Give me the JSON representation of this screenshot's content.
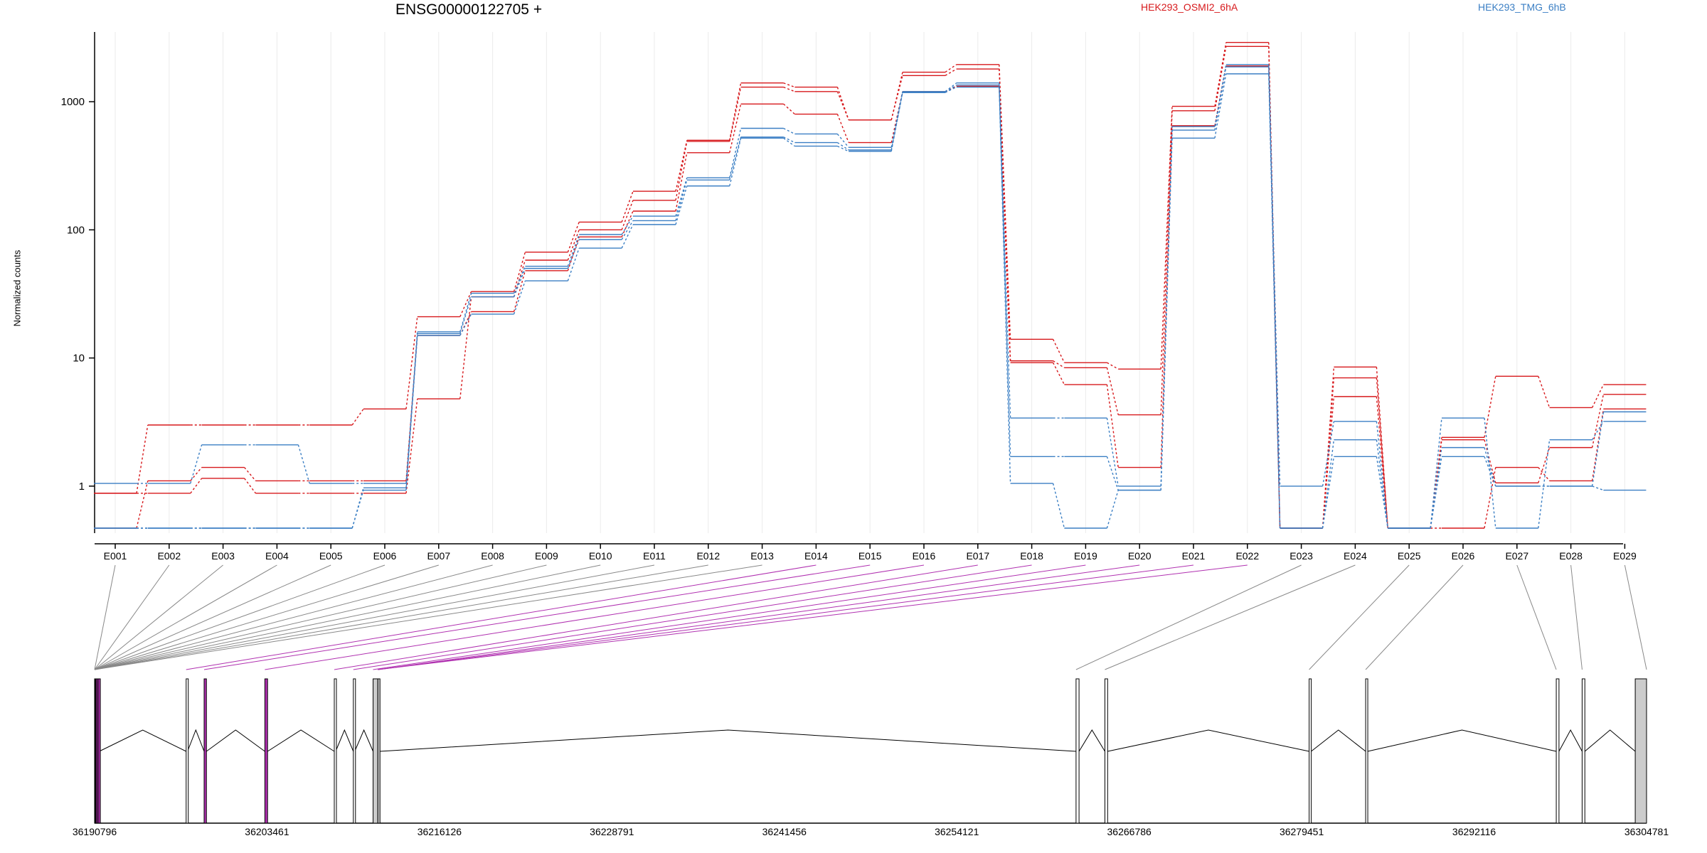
{
  "chart_data": {
    "type": "line",
    "title": "ENSG00000122705 +",
    "ylabel": "Normalized counts",
    "xlabel": "",
    "y_scale": "log",
    "ylim": [
      0.47,
      3500
    ],
    "y_ticks": [
      1,
      10,
      100,
      1000
    ],
    "y_tick_labels": [
      "1",
      "10",
      "100",
      "1000"
    ],
    "grid": "vertical",
    "legend": "top",
    "colors": {
      "HEK293_OSMI2_6hA": "#d7191c",
      "HEK293_TMG_6hB": "#3b7fc4",
      "highlight": "#b030b0"
    },
    "categories": [
      "E001",
      "E002",
      "E003",
      "E004",
      "E005",
      "E006",
      "E007",
      "E008",
      "E009",
      "E010",
      "E011",
      "E012",
      "E013",
      "E014",
      "E015",
      "E016",
      "E017",
      "E018",
      "E019",
      "E020",
      "E021",
      "E022",
      "E023",
      "E024",
      "E025",
      "E026",
      "E027",
      "E028",
      "E029"
    ],
    "series": [
      {
        "name": "HEK293_OSMI2_6hA",
        "color": "#d7191c",
        "values": [
          0.88,
          3.0,
          3.0,
          3.0,
          3.0,
          4.0,
          21,
          33,
          67,
          115,
          200,
          500,
          1400,
          1300,
          720,
          1700,
          1950,
          14,
          9.2,
          8.2,
          920,
          2900,
          0.47,
          8.5,
          0.47,
          2.4,
          7.2,
          4.1,
          6.2
        ]
      },
      {
        "name": "HEK293_OSMI2_6hA",
        "color": "#d7191c",
        "values": [
          0.88,
          0.88,
          1.15,
          0.88,
          0.88,
          0.88,
          4.8,
          30,
          58,
          100,
          170,
          490,
          1300,
          1200,
          720,
          1600,
          1800,
          9.5,
          8.4,
          3.6,
          850,
          2700,
          0.47,
          7.0,
          0.47,
          2.3,
          1.06,
          2.0,
          5.2
        ]
      },
      {
        "name": "HEK293_OSMI2_6hA",
        "color": "#d7191c",
        "values": [
          0.47,
          1.1,
          1.4,
          1.1,
          1.1,
          1.1,
          15,
          23,
          48,
          88,
          140,
          400,
          960,
          800,
          480,
          1200,
          1320,
          9.2,
          6.2,
          1.4,
          650,
          1900,
          0.47,
          5.0,
          0.47,
          0.47,
          1.4,
          1.1,
          4.0
        ]
      },
      {
        "name": "HEK293_TMG_6hB",
        "color": "#3b7fc4",
        "values": [
          1.05,
          1.05,
          2.1,
          2.1,
          1.05,
          1.05,
          16,
          32,
          52,
          92,
          128,
          255,
          620,
          560,
          440,
          1200,
          1400,
          3.4,
          3.4,
          1.0,
          640,
          1950,
          1.0,
          3.2,
          0.47,
          3.4,
          0.47,
          2.3,
          3.2
        ]
      },
      {
        "name": "HEK293_TMG_6hB",
        "color": "#3b7fc4",
        "values": [
          0.47,
          0.47,
          0.47,
          0.47,
          0.47,
          0.97,
          15.5,
          30,
          50,
          84,
          118,
          245,
          530,
          480,
          420,
          1180,
          1350,
          1.7,
          1.7,
          0.93,
          600,
          1870,
          0.47,
          2.3,
          0.47,
          2.0,
          1.0,
          1.0,
          0.93
        ]
      },
      {
        "name": "HEK293_TMG_6hB",
        "color": "#3b7fc4",
        "values": [
          0.47,
          0.47,
          0.47,
          0.47,
          0.47,
          0.93,
          15,
          22,
          40,
          72,
          110,
          220,
          520,
          450,
          410,
          1180,
          1300,
          1.05,
          0.47,
          0.93,
          520,
          1650,
          0.47,
          1.7,
          0.47,
          1.7,
          1.0,
          1.0,
          3.8
        ]
      }
    ],
    "highlighted_exons": [
      "E001",
      "E002",
      "E003",
      "E004",
      "E005",
      "E006",
      "E007",
      "E008",
      "E009",
      "E010",
      "E011",
      "E012",
      "E013",
      "E014",
      "E015",
      "E016",
      "E017",
      "E018",
      "E019",
      "E020",
      "E021",
      "E022"
    ],
    "gene_model": {
      "coordinate_ticks": [
        "36190796",
        "36203461",
        "36216126",
        "36228791",
        "36241456",
        "36254121",
        "36266786",
        "36279451",
        "36292116",
        "36304781"
      ],
      "exons": [
        {
          "id": "E001",
          "start": 36190796,
          "end": 36190880,
          "fill": "#000000"
        },
        {
          "id": "E002",
          "start": 36190880,
          "end": 36190960,
          "fill": "#b030b0"
        },
        {
          "id": "E003",
          "start": 36190960,
          "end": 36191060,
          "fill": "#b030b0"
        },
        {
          "id": "E004",
          "start": 36191060,
          "end": 36191140,
          "fill": "#b030b0"
        },
        {
          "id": "E005",
          "start": 36197520,
          "end": 36197620,
          "fill": "#ffffff"
        },
        {
          "id": "E006",
          "start": 36198840,
          "end": 36199010,
          "fill": "#b030b0"
        },
        {
          "id": "E007",
          "start": 36203300,
          "end": 36203500,
          "fill": "#b030b0"
        },
        {
          "id": "E008",
          "start": 36208400,
          "end": 36208500,
          "fill": "#ffffff"
        },
        {
          "id": "E009",
          "start": 36209800,
          "end": 36209900,
          "fill": "#ffffff"
        },
        {
          "id": "E010",
          "start": 36211250,
          "end": 36211600,
          "fill": "#cccccc"
        },
        {
          "id": "E011",
          "start": 36211600,
          "end": 36211750,
          "fill": "#cccccc"
        },
        {
          "id": "E012",
          "start": 36262880,
          "end": 36263100,
          "fill": "#ffffff"
        },
        {
          "id": "E013",
          "start": 36265000,
          "end": 36265200,
          "fill": "#ffffff"
        },
        {
          "id": "E014",
          "start": 36280000,
          "end": 36280150,
          "fill": "#ffffff"
        },
        {
          "id": "E015",
          "start": 36284150,
          "end": 36284300,
          "fill": "#ffffff"
        },
        {
          "id": "E016",
          "start": 36298150,
          "end": 36298350,
          "fill": "#ffffff"
        },
        {
          "id": "E017",
          "start": 36300050,
          "end": 36300250,
          "fill": "#ffffff"
        },
        {
          "id": "E018",
          "start": 36303950,
          "end": 36304781,
          "fill": "#cccccc"
        }
      ],
      "connector_targets": [
        36190796,
        36190796,
        36190796,
        36190796,
        36190796,
        36190796,
        36190796,
        36190796,
        36190796,
        36190796,
        36190796,
        36190796,
        36190796,
        36197520,
        36198840,
        36203300,
        36208400,
        36209800,
        36211250,
        36211600,
        36211600,
        36211600,
        36262880,
        36265000,
        36280000,
        36284150,
        36298150,
        36300050,
        36304781
      ]
    }
  },
  "legend": [
    {
      "label": "HEK293_OSMI2_6hA",
      "color": "#d7191c"
    },
    {
      "label": "HEK293_TMG_6hB",
      "color": "#3b7fc4"
    }
  ]
}
